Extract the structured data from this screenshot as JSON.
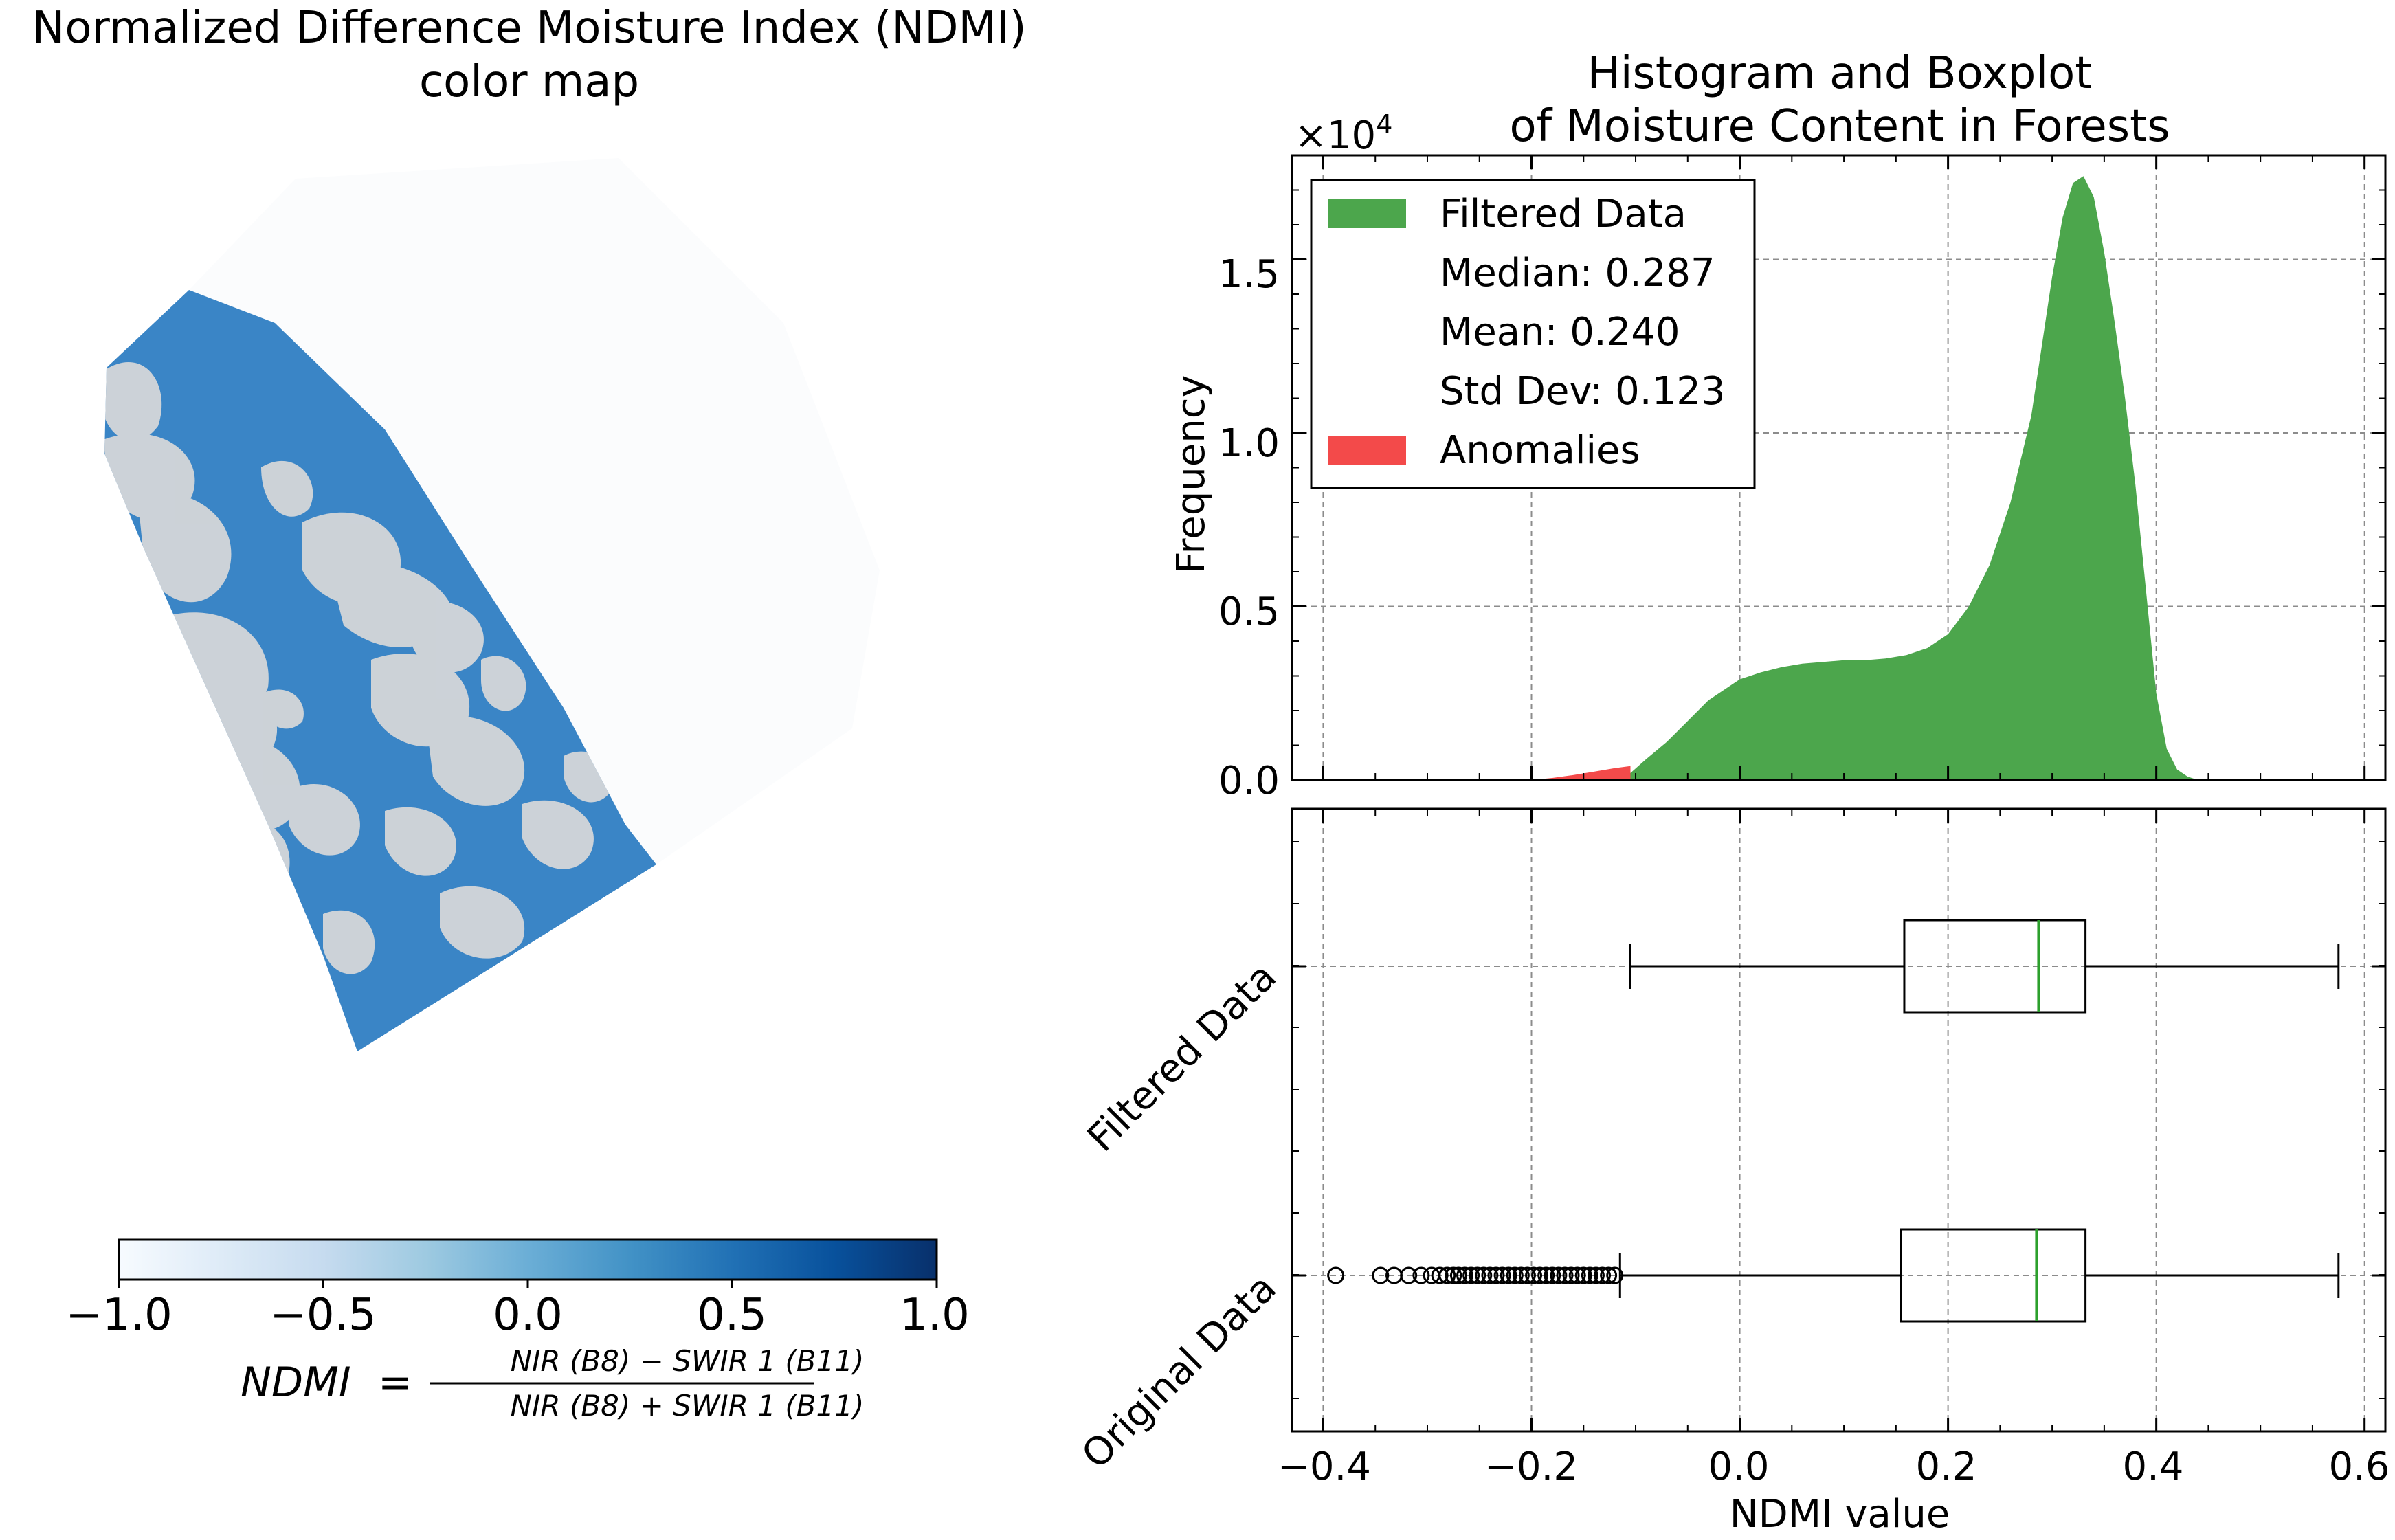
{
  "left_panel": {
    "title_line1": "Normalized Difference Moisture Index (NDMI)",
    "title_line2": "color map",
    "colorbar": {
      "ticks": [
        "−1.0",
        "−0.5",
        "0.0",
        "0.5",
        "1.0"
      ],
      "range": [
        -1.0,
        1.0
      ],
      "colormap": "Blues",
      "low_color": "#f7fbff",
      "high_color": "#08306b"
    },
    "formula": {
      "lhs": "NDMI",
      "eq": "=",
      "numerator": "NIR (B8) − SWIR 1 (B11)",
      "denominator": "NIR (B8) + SWIR 1 (B11)"
    },
    "map_colors": {
      "water_blue": "#3a85c6",
      "cloud_gray": "#d9d9d9"
    }
  },
  "right_panel": {
    "title_line1": "Histogram and Boxplot",
    "title_line2": "of Moisture Content in Forests",
    "histogram": {
      "ylabel": "Frequency",
      "multiplier": "×10",
      "multiplier_exp": "4",
      "ytick_labels": [
        "0.0",
        "0.5",
        "1.0",
        "1.5"
      ],
      "legend": {
        "filtered_label": "Filtered Data",
        "median": "Median: 0.287",
        "mean": "Mean: 0.240",
        "std": "Std Dev: 0.123",
        "anomalies_label": "Anomalies"
      }
    },
    "boxplot": {
      "ytick_labels": [
        "Filtered Data",
        "Original Data"
      ],
      "xtick_labels": [
        "−0.4",
        "−0.2",
        "0.0",
        "0.2",
        "0.4",
        "0.6"
      ],
      "xlabel": "NDMI value"
    }
  },
  "chart_data": [
    {
      "type": "area",
      "chart": "histogram",
      "ylabel": "Frequency",
      "y_multiplier": 10000,
      "xlim": [
        -0.43,
        0.62
      ],
      "ylim": [
        0,
        1.8
      ],
      "grid": true,
      "legend_position": "upper-left",
      "series": [
        {
          "name": "Filtered Data",
          "color": "#4ca64c",
          "x": [
            -0.105,
            -0.09,
            -0.07,
            -0.05,
            -0.03,
            -0.01,
            0.0,
            0.02,
            0.04,
            0.06,
            0.08,
            0.1,
            0.12,
            0.14,
            0.16,
            0.18,
            0.2,
            0.22,
            0.24,
            0.26,
            0.28,
            0.29,
            0.3,
            0.31,
            0.32,
            0.33,
            0.34,
            0.35,
            0.36,
            0.37,
            0.38,
            0.39,
            0.4,
            0.41,
            0.42,
            0.43,
            0.44
          ],
          "y": [
            0.02,
            0.06,
            0.11,
            0.17,
            0.23,
            0.27,
            0.29,
            0.31,
            0.325,
            0.335,
            0.34,
            0.345,
            0.345,
            0.35,
            0.36,
            0.38,
            0.42,
            0.5,
            0.62,
            0.8,
            1.05,
            1.25,
            1.45,
            1.62,
            1.72,
            1.74,
            1.68,
            1.52,
            1.32,
            1.1,
            0.85,
            0.55,
            0.25,
            0.09,
            0.03,
            0.01,
            0.0
          ]
        },
        {
          "name": "Anomalies",
          "color": "#f34a4a",
          "x": [
            -0.2,
            -0.18,
            -0.16,
            -0.14,
            -0.12,
            -0.105
          ],
          "y": [
            0.0,
            0.006,
            0.014,
            0.024,
            0.034,
            0.04
          ]
        }
      ],
      "stats": {
        "median": 0.287,
        "mean": 0.24,
        "std": 0.123
      }
    },
    {
      "type": "box",
      "chart": "boxplot",
      "xlabel": "NDMI value",
      "xlim": [
        -0.43,
        0.62
      ],
      "grid": true,
      "categories": [
        "Filtered Data",
        "Original Data"
      ],
      "boxes": [
        {
          "name": "Filtered Data",
          "whisker_low": -0.105,
          "q1": 0.158,
          "median": 0.287,
          "q3": 0.332,
          "whisker_high": 0.575,
          "outliers": []
        },
        {
          "name": "Original Data",
          "whisker_low": -0.115,
          "q1": 0.155,
          "median": 0.285,
          "q3": 0.332,
          "whisker_high": 0.575,
          "outliers": [
            -0.388,
            -0.345,
            -0.332,
            -0.318,
            -0.306,
            -0.296,
            -0.288,
            -0.281,
            -0.275,
            -0.27,
            -0.264,
            -0.258,
            -0.252,
            -0.246,
            -0.24,
            -0.234,
            -0.228,
            -0.222,
            -0.216,
            -0.21,
            -0.204,
            -0.198,
            -0.192,
            -0.186,
            -0.18,
            -0.174,
            -0.168,
            -0.162,
            -0.156,
            -0.15,
            -0.144,
            -0.138,
            -0.132,
            -0.126,
            -0.12
          ]
        }
      ],
      "median_color": "#2ca02c"
    }
  ]
}
